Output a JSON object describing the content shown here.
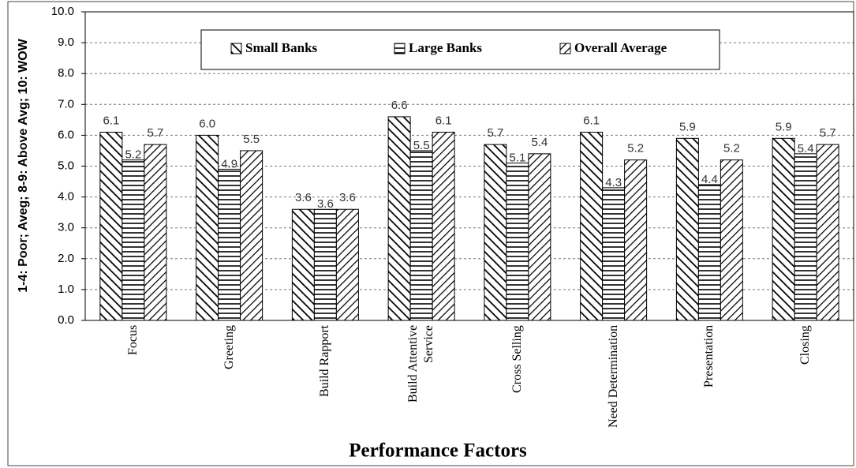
{
  "chart_data": {
    "type": "bar",
    "x_label": "Performance Factors",
    "y_label": "1-4: Poor; Aveg; 8-9: Above Avg; 10: WOW",
    "categories": [
      "Focus",
      "Greeting",
      "Build Rapport",
      "Build Attentive Service",
      "Cross Selling",
      "Need Determination",
      "Presentation",
      "Closing"
    ],
    "series": [
      {
        "name": "Small Banks",
        "color": "#000000",
        "values": [
          6.1,
          6.0,
          3.6,
          6.6,
          5.7,
          6.1,
          5.9,
          5.9
        ],
        "value_labels": [
          "6.1",
          "6.0",
          "3.6",
          "6.6",
          "5.7",
          "6.1",
          "5.9",
          "5.9"
        ]
      },
      {
        "name": "Large Banks",
        "color": "#000000",
        "values": [
          5.2,
          4.9,
          3.6,
          5.5,
          5.1,
          4.3,
          4.4,
          5.4
        ],
        "value_labels": [
          "5.2",
          "4.9",
          "3.6",
          "5.5",
          "5.1",
          "4.3",
          "4.4",
          "5.4"
        ]
      },
      {
        "name": "Overall Average",
        "color": "#000000",
        "values": [
          5.7,
          5.5,
          3.6,
          6.1,
          5.4,
          5.2,
          5.2,
          5.7
        ],
        "value_labels": [
          "5.7",
          "5.5",
          "3.6",
          "6.1",
          "5.4",
          "5.2",
          "5.2",
          "5.7"
        ]
      }
    ],
    "ylim": [
      0,
      10
    ],
    "yticks": [
      {
        "value": 0,
        "label": "0.0"
      },
      {
        "value": 1,
        "label": "1.0"
      },
      {
        "value": 2,
        "label": "2.0"
      },
      {
        "value": 3,
        "label": "3.0"
      },
      {
        "value": 4,
        "label": "4.0"
      },
      {
        "value": 5,
        "label": "5.0"
      },
      {
        "value": 6,
        "label": "6.0"
      },
      {
        "value": 7,
        "label": "7.0"
      },
      {
        "value": 8,
        "label": "8.0"
      },
      {
        "value": 9,
        "label": "9.0"
      },
      {
        "value": 10,
        "label": "10.0"
      }
    ],
    "grid": true,
    "legend": "top"
  }
}
